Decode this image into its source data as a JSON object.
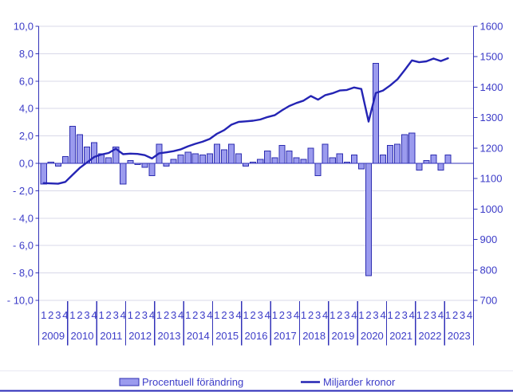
{
  "legend": {
    "bar_label": "Procentuell förändring",
    "line_label": "Miljarder kronor"
  },
  "chart_data": {
    "type": "bar+line",
    "title": "",
    "years": [
      "2009",
      "2010",
      "2011",
      "2012",
      "2013",
      "2014",
      "2015",
      "2016",
      "2017",
      "2018",
      "2019",
      "2020",
      "2021",
      "2022",
      "2023"
    ],
    "quarter_labels": [
      "1",
      "2",
      "3",
      "4"
    ],
    "left_axis": {
      "label": "Procentuell förändring",
      "min": -10,
      "max": 10,
      "step": 2,
      "tick_labels": [
        "10,0",
        "8,0",
        "6,0",
        "4,0",
        "2,0",
        "0,0",
        "- 2,0",
        "- 4,0",
        "- 6,0",
        "- 8,0",
        "- 10,0"
      ]
    },
    "right_axis": {
      "label": "Miljarder kronor",
      "min": 700,
      "max": 1600,
      "step": 100,
      "tick_labels": [
        "1600",
        "1500",
        "1400",
        "1300",
        "1200",
        "1100",
        "1000",
        "900",
        "800",
        "700"
      ]
    },
    "grid": true,
    "legend_position": "bottom",
    "series": [
      {
        "name": "Procentuell förändring",
        "type": "bar",
        "axis": "left",
        "values": [
          -1.5,
          0.1,
          -0.2,
          0.5,
          2.7,
          2.1,
          1.2,
          1.5,
          0.7,
          0.4,
          1.2,
          -1.5,
          0.2,
          -0.1,
          -0.3,
          -0.9,
          1.4,
          -0.2,
          0.3,
          0.6,
          0.8,
          0.7,
          0.6,
          0.7,
          1.4,
          1.0,
          1.4,
          0.7,
          -0.2,
          0.1,
          0.3,
          0.9,
          0.4,
          1.3,
          0.9,
          0.4,
          0.3,
          1.1,
          -0.9,
          1.4,
          0.4,
          0.7,
          0.1,
          0.6,
          -0.4,
          -8.2,
          7.3,
          0.6,
          1.3,
          1.4,
          2.1,
          2.2,
          -0.5,
          0.2,
          0.6,
          -0.5,
          0.6,
          null,
          null,
          null
        ]
      },
      {
        "name": "Miljarder kronor",
        "type": "line",
        "axis": "right",
        "values": [
          1085,
          1084,
          1083,
          1089,
          1112,
          1135,
          1153,
          1171,
          1179,
          1184,
          1198,
          1180,
          1182,
          1181,
          1177,
          1166,
          1183,
          1186,
          1190,
          1196,
          1206,
          1214,
          1221,
          1230,
          1247,
          1259,
          1277,
          1286,
          1288,
          1290,
          1294,
          1302,
          1308,
          1324,
          1338,
          1348,
          1356,
          1371,
          1359,
          1374,
          1380,
          1389,
          1391,
          1399,
          1394,
          1287,
          1381,
          1389,
          1406,
          1426,
          1456,
          1488,
          1482,
          1485,
          1494,
          1486,
          1495,
          null,
          null,
          null
        ]
      }
    ],
    "colors": {
      "bar_fill": "#9b9bee",
      "bar_border": "#2d2db0",
      "line": "#2424b4",
      "grid": "#d8d8e8",
      "axis": "#3232b8",
      "text": "#3c3cc8",
      "separator_light": "#e8e8f2",
      "bottom_rule": "#2929b8"
    }
  }
}
